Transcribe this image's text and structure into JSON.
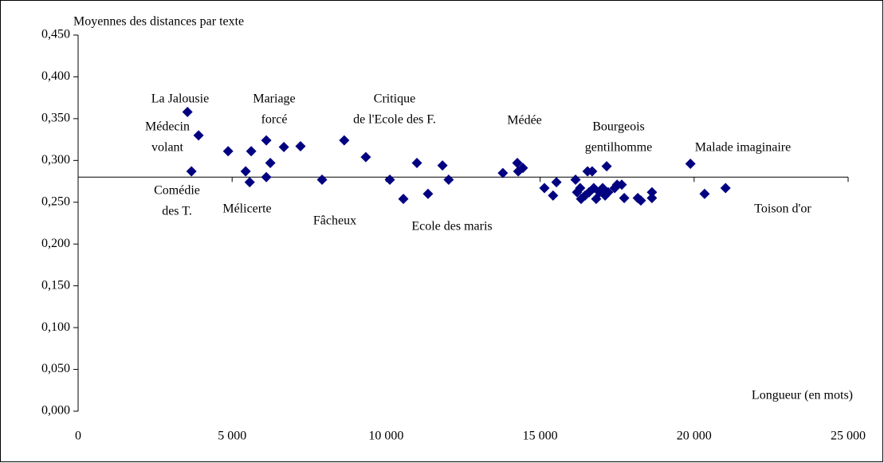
{
  "chart_data": {
    "type": "scatter",
    "y_label": "Moyennes des distances par texte",
    "x_label": "Longueur (en mots)",
    "color": "#000080",
    "xlim": [
      0,
      25000
    ],
    "ylim": [
      0,
      0.45
    ],
    "x_axis_crosses_at": 0.28,
    "xticks": [
      0,
      {
        "value": 5000,
        "label": "5 000"
      },
      {
        "value": 10000,
        "label": "10 000"
      },
      {
        "value": 15000,
        "label": "15 000"
      },
      {
        "value": 20000,
        "label": "20 000"
      },
      {
        "value": 25000,
        "label": "25 000"
      }
    ],
    "yticks": [
      {
        "value": 0,
        "label": "0,000"
      },
      {
        "value": 0.05,
        "label": "0,050"
      },
      {
        "value": 0.1,
        "label": "0,100"
      },
      {
        "value": 0.15,
        "label": "0,150"
      },
      {
        "value": 0.2,
        "label": "0,200"
      },
      {
        "value": 0.25,
        "label": "0,250"
      },
      {
        "value": 0.3,
        "label": "0,300"
      },
      {
        "value": 0.35,
        "label": "0,350"
      },
      {
        "value": 0.4,
        "label": "0,400"
      },
      {
        "value": 0.45,
        "label": "0,450"
      }
    ],
    "x": [
      3550,
      3910,
      3680,
      4870,
      5440,
      5620,
      5570,
      6110,
      6110,
      6240,
      6680,
      7220,
      7920,
      8640,
      9340,
      10120,
      10560,
      11000,
      11360,
      11830,
      12030,
      13790,
      14260,
      14290,
      14440,
      15140,
      15530,
      15420,
      16150,
      16200,
      16330,
      16460,
      16540,
      16690,
      16590,
      16740,
      16820,
      16930,
      17030,
      17110,
      17210,
      17160,
      17420,
      17500,
      17650,
      17730,
      18170,
      18270,
      18630,
      18630,
      19880,
      20340,
      21020,
      16300
    ],
    "values": [
      0.358,
      0.33,
      0.287,
      0.311,
      0.287,
      0.311,
      0.274,
      0.324,
      0.28,
      0.297,
      0.316,
      0.317,
      0.277,
      0.324,
      0.304,
      0.277,
      0.254,
      0.297,
      0.26,
      0.294,
      0.277,
      0.285,
      0.297,
      0.287,
      0.291,
      0.267,
      0.274,
      0.258,
      0.277,
      0.262,
      0.254,
      0.258,
      0.287,
      0.287,
      0.262,
      0.267,
      0.254,
      0.262,
      0.267,
      0.258,
      0.262,
      0.293,
      0.267,
      0.271,
      0.271,
      0.255,
      0.255,
      0.252,
      0.262,
      0.255,
      0.296,
      0.26,
      0.267,
      0.267
    ],
    "annotations": [
      [
        "La Jalousie"
      ],
      [
        "Médecin",
        "volant"
      ],
      [
        "Comédie",
        "des T."
      ],
      [
        "Mariage",
        "forcé"
      ],
      [
        "Mélicerte"
      ],
      [
        "Fâcheux"
      ],
      [
        "Critique",
        "de l'Ecole des F."
      ],
      [
        "Ecole des maris"
      ],
      [
        "Médée"
      ],
      [
        "Bourgeois",
        "gentilhomme"
      ],
      [
        "Malade imaginaire"
      ],
      [
        "Toison d'or"
      ]
    ]
  }
}
